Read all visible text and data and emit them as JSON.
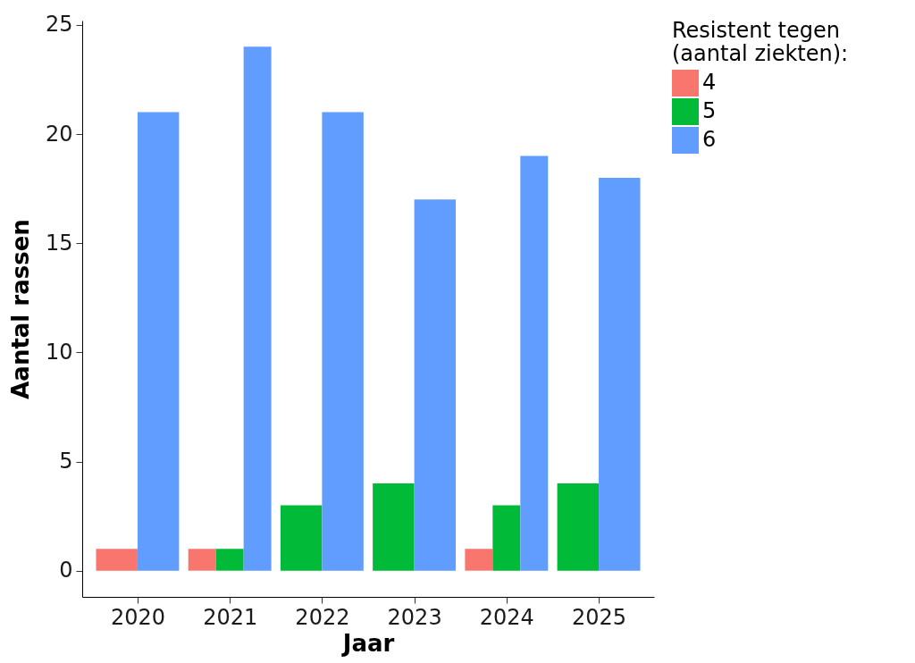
{
  "chart_data": {
    "type": "bar",
    "xlabel": "Jaar",
    "ylabel": "Aantal rassen",
    "legend_title": "Resistent tegen\n(aantal ziekten):",
    "categories": [
      "2020",
      "2021",
      "2022",
      "2023",
      "2024",
      "2025"
    ],
    "series": [
      {
        "name": "4",
        "color": "#f8766d",
        "values": [
          1,
          1,
          null,
          null,
          1,
          null
        ]
      },
      {
        "name": "5",
        "color": "#00ba38",
        "values": [
          null,
          1,
          3,
          4,
          3,
          4
        ]
      },
      {
        "name": "6",
        "color": "#619cff",
        "values": [
          21,
          24,
          21,
          17,
          19,
          18
        ]
      }
    ],
    "ylim": [
      -1.2,
      25.2
    ],
    "yticks": [
      0,
      5,
      10,
      15,
      20,
      25
    ],
    "grid": false,
    "legend": "right"
  }
}
